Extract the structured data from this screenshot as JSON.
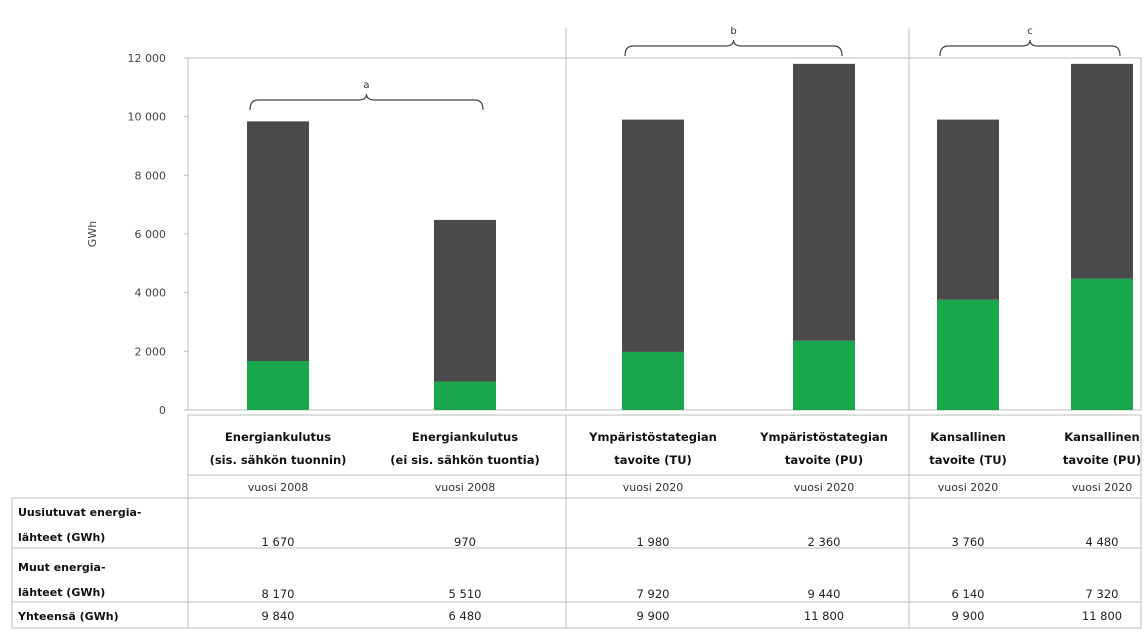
{
  "chart_data": {
    "type": "bar",
    "stacked": true,
    "ylabel": "GWh",
    "ylim": [
      0,
      12000
    ],
    "yticks": [
      0,
      2000,
      4000,
      6000,
      8000,
      10000,
      12000
    ],
    "ytick_labels": [
      "0",
      "2 000",
      "4 000",
      "6 000",
      "8 000",
      "10 000",
      "12 000"
    ],
    "categories": [
      {
        "line1": "Energiankulutus",
        "line2": "(sis. sähkön tuonnin)",
        "year": "vuosi 2008"
      },
      {
        "line1": "Energiankulutus",
        "line2": "(ei sis. sähkön tuontia)",
        "year": "vuosi 2008"
      },
      {
        "line1": "Ympäristöstategian",
        "line2": "tavoite (TU)",
        "year": "vuosi 2020"
      },
      {
        "line1": "Ympäristöstategian",
        "line2": "tavoite (PU)",
        "year": "vuosi 2020"
      },
      {
        "line1": "Kansallinen",
        "line2": "tavoite (TU)",
        "year": "vuosi 2020"
      },
      {
        "line1": "Kansallinen",
        "line2": "tavoite (PU)",
        "year": "vuosi 2020"
      }
    ],
    "series": [
      {
        "values": [
          1670,
          970,
          1980,
          2360,
          3760,
          4480
        ],
        "color": "#1aa64a"
      },
      {
        "values": [
          8170,
          5510,
          7920,
          9440,
          6140,
          7320
        ],
        "color": "#4a4a4a"
      }
    ],
    "group_labels": [
      "a",
      "b",
      "c"
    ],
    "groups": [
      [
        0,
        1
      ],
      [
        2,
        3
      ],
      [
        4,
        5
      ]
    ],
    "table": {
      "rows": [
        {
          "label_lines": [
            "Uusiutuvat energia-",
            "lähteet (GWh)"
          ],
          "values": [
            "1 670",
            "970",
            "1 980",
            "2 360",
            "3 760",
            "4 480"
          ]
        },
        {
          "label_lines": [
            "Muut energia-",
            "lähteet (GWh)"
          ],
          "values": [
            "8 170",
            "5 510",
            "7 920",
            "9 440",
            "6 140",
            "7 320"
          ]
        },
        {
          "label_lines": [
            "Yhteensä (GWh)"
          ],
          "values": [
            "9 840",
            "6 480",
            "9 900",
            "11 800",
            "9 900",
            "11 800"
          ]
        }
      ]
    }
  }
}
